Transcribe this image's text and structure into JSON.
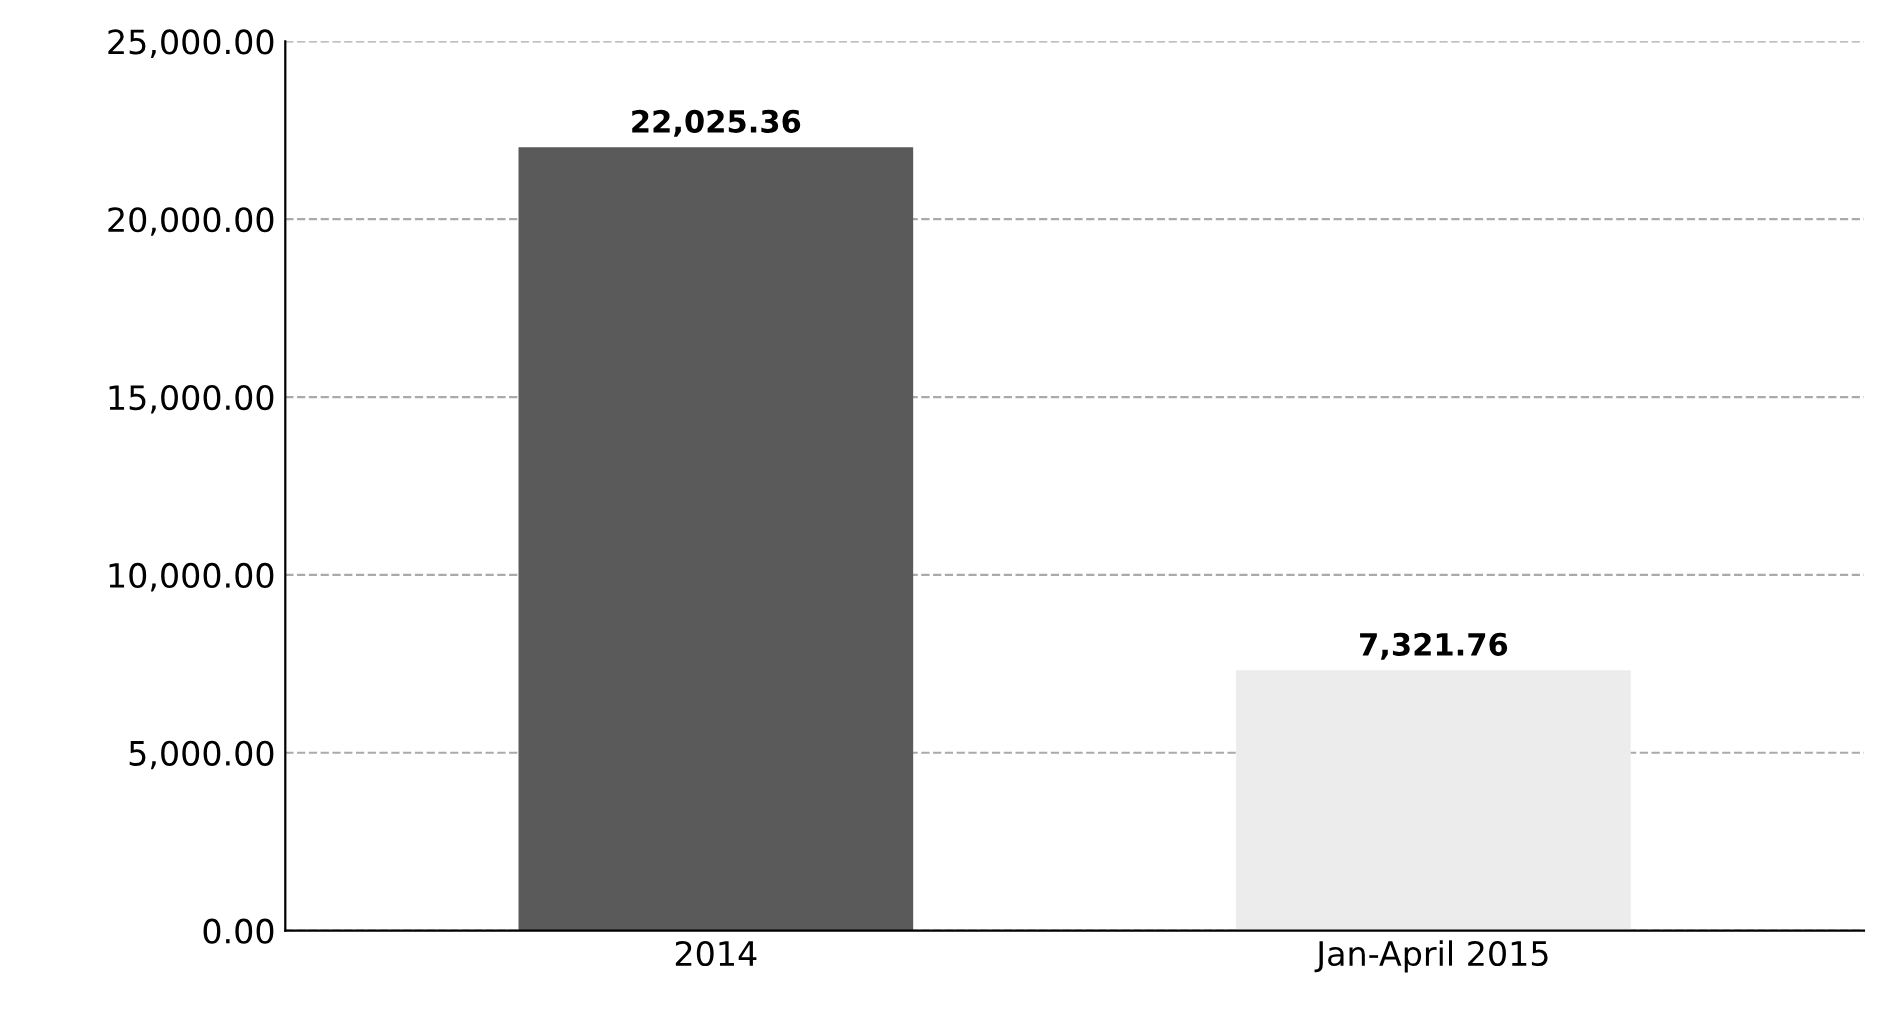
{
  "chart_data": {
    "type": "bar",
    "categories": [
      "2014",
      "Jan-April 2015"
    ],
    "values": [
      22025.36,
      7321.76
    ],
    "colors": [
      "#5a5a5a",
      "#ececec"
    ],
    "value_labels": [
      "22,025.36",
      "7,321.76"
    ],
    "ylim": [
      0,
      25000
    ],
    "yticks": [
      {
        "value": 0,
        "label": "0.00"
      },
      {
        "value": 5000,
        "label": "5,000.00"
      },
      {
        "value": 10000,
        "label": "10,000.00"
      },
      {
        "value": 15000,
        "label": "15,000.00"
      },
      {
        "value": 20000,
        "label": "20,000.00"
      },
      {
        "value": 25000,
        "label": "25,000.00"
      }
    ],
    "grid": "y"
  }
}
